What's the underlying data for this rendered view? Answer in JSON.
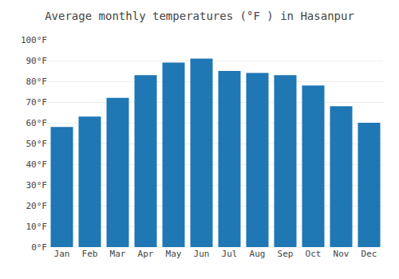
{
  "chart_data": {
    "type": "bar",
    "title": "Average monthly temperatures (°F ) in Hasanpur",
    "categories": [
      "Jan",
      "Feb",
      "Mar",
      "Apr",
      "May",
      "Jun",
      "Jul",
      "Aug",
      "Sep",
      "Oct",
      "Nov",
      "Dec"
    ],
    "values": [
      58,
      63,
      72,
      83,
      89,
      91,
      85,
      84,
      83,
      78,
      68,
      60
    ],
    "ylim": [
      0,
      100
    ],
    "yticks": [
      {
        "value": 0,
        "label": "0°F"
      },
      {
        "value": 10,
        "label": "10°F"
      },
      {
        "value": 20,
        "label": "20°F"
      },
      {
        "value": 30,
        "label": "30°F"
      },
      {
        "value": 40,
        "label": "40°F"
      },
      {
        "value": 50,
        "label": "50°F"
      },
      {
        "value": 60,
        "label": "60°F"
      },
      {
        "value": 70,
        "label": "70°F"
      },
      {
        "value": 80,
        "label": "80°F"
      },
      {
        "value": 90,
        "label": "90°F"
      },
      {
        "value": 100,
        "label": "100°F"
      }
    ],
    "grid": true
  }
}
